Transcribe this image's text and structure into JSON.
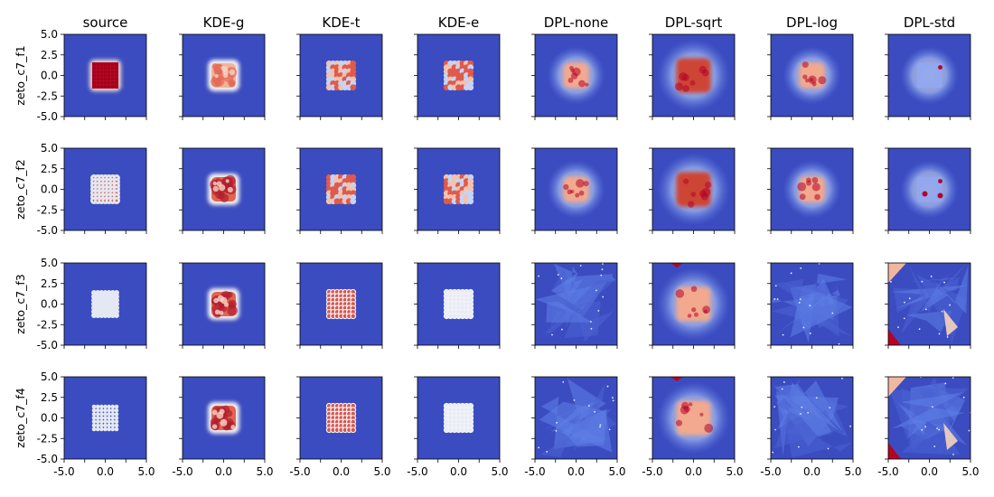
{
  "chart_data": {
    "type": "heatmap",
    "layout": "grid",
    "columns": [
      "source",
      "KDE-g",
      "KDE-t",
      "KDE-e",
      "DPL-none",
      "DPL-sqrt",
      "DPL-log",
      "DPL-std"
    ],
    "rows": [
      "zeto_c7_f1",
      "zeto_c7_f2",
      "zeto_c7_f3",
      "zeto_c7_f4"
    ],
    "xlim": [
      -5.0,
      5.0
    ],
    "ylim": [
      -5.0,
      5.0
    ],
    "x_ticks": [
      -5.0,
      -2.5,
      0.0,
      2.5,
      5.0
    ],
    "x_tick_labels": [
      "-5.0",
      "0.0",
      "5.0"
    ],
    "x_tick_label_values": [
      -5.0,
      0.0,
      5.0
    ],
    "y_ticks": [
      -5.0,
      -2.5,
      0.0,
      2.5,
      5.0
    ],
    "y_tick_labels": [
      "5.0",
      "2.5",
      "0.0",
      "-2.5",
      "-5.0"
    ],
    "y_tick_label_values": [
      5.0,
      2.5,
      0.0,
      -2.5,
      -5.0
    ],
    "colormap": "coolwarm",
    "colors": {
      "background": "#3b4cc0",
      "low": "#6788ee",
      "mid": "#dddddd",
      "high": "#b40426"
    },
    "support_square": [
      -1.6,
      1.6
    ],
    "grid_points": {
      "zeto_c7_f1": 7,
      "zeto_c7_f2": 7,
      "zeto_c7_f3": 7,
      "zeto_c7_f4": 7
    },
    "shared_x_axis": true,
    "shared_y_axis": true,
    "grid": false,
    "legend": "none"
  }
}
